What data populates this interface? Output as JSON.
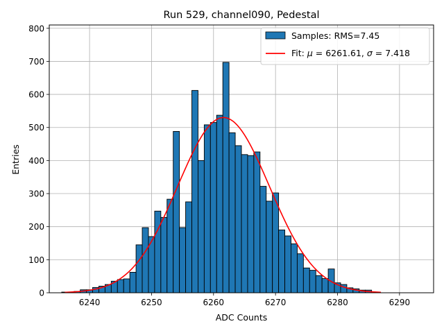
{
  "chart_data": {
    "type": "bar",
    "title": "Run 529, channel090, Pedestal",
    "xlabel": "ADC Counts",
    "ylabel": "Entries",
    "xlim": [
      6233.5,
      6295.5
    ],
    "ylim": [
      0,
      810
    ],
    "xticks": [
      6240,
      6250,
      6260,
      6270,
      6280,
      6290
    ],
    "yticks": [
      0,
      100,
      200,
      300,
      400,
      500,
      600,
      700,
      800
    ],
    "grid": true,
    "bar_color": "#1f77b4",
    "fit_color": "#ff0000",
    "bin_width": 1,
    "bins": [
      {
        "x": 6236,
        "count": 2
      },
      {
        "x": 6237,
        "count": 2
      },
      {
        "x": 6238,
        "count": 4
      },
      {
        "x": 6239,
        "count": 9
      },
      {
        "x": 6240,
        "count": 9
      },
      {
        "x": 6241,
        "count": 16
      },
      {
        "x": 6242,
        "count": 20
      },
      {
        "x": 6243,
        "count": 25
      },
      {
        "x": 6244,
        "count": 35
      },
      {
        "x": 6245,
        "count": 40
      },
      {
        "x": 6246,
        "count": 42
      },
      {
        "x": 6247,
        "count": 62
      },
      {
        "x": 6248,
        "count": 145
      },
      {
        "x": 6249,
        "count": 197
      },
      {
        "x": 6250,
        "count": 170
      },
      {
        "x": 6251,
        "count": 247
      },
      {
        "x": 6252,
        "count": 228
      },
      {
        "x": 6253,
        "count": 283
      },
      {
        "x": 6254,
        "count": 488
      },
      {
        "x": 6255,
        "count": 197
      },
      {
        "x": 6256,
        "count": 275
      },
      {
        "x": 6257,
        "count": 612
      },
      {
        "x": 6258,
        "count": 400
      },
      {
        "x": 6259,
        "count": 508
      },
      {
        "x": 6260,
        "count": 515
      },
      {
        "x": 6261,
        "count": 537
      },
      {
        "x": 6262,
        "count": 697
      },
      {
        "x": 6263,
        "count": 484
      },
      {
        "x": 6264,
        "count": 445
      },
      {
        "x": 6265,
        "count": 418
      },
      {
        "x": 6266,
        "count": 415
      },
      {
        "x": 6267,
        "count": 426
      },
      {
        "x": 6268,
        "count": 322
      },
      {
        "x": 6269,
        "count": 277
      },
      {
        "x": 6270,
        "count": 302
      },
      {
        "x": 6271,
        "count": 190
      },
      {
        "x": 6272,
        "count": 172
      },
      {
        "x": 6273,
        "count": 148
      },
      {
        "x": 6274,
        "count": 118
      },
      {
        "x": 6275,
        "count": 75
      },
      {
        "x": 6276,
        "count": 68
      },
      {
        "x": 6277,
        "count": 52
      },
      {
        "x": 6278,
        "count": 43
      },
      {
        "x": 6279,
        "count": 72
      },
      {
        "x": 6280,
        "count": 30
      },
      {
        "x": 6281,
        "count": 25
      },
      {
        "x": 6282,
        "count": 15
      },
      {
        "x": 6283,
        "count": 12
      },
      {
        "x": 6284,
        "count": 8
      },
      {
        "x": 6285,
        "count": 8
      }
    ],
    "fit": {
      "mu": 6261.61,
      "sigma": 7.418,
      "amplitude": 530,
      "x_range": [
        6236,
        6287
      ]
    },
    "legend": {
      "placement": "top-right",
      "samples_label": "Samples: RMS=7.45",
      "fit_label_prefix": "Fit: ",
      "fit_mu_symbol": "μ",
      "fit_mu_value": " = 6261.61, ",
      "fit_sigma_symbol": "σ",
      "fit_sigma_value": " = 7.418"
    }
  }
}
